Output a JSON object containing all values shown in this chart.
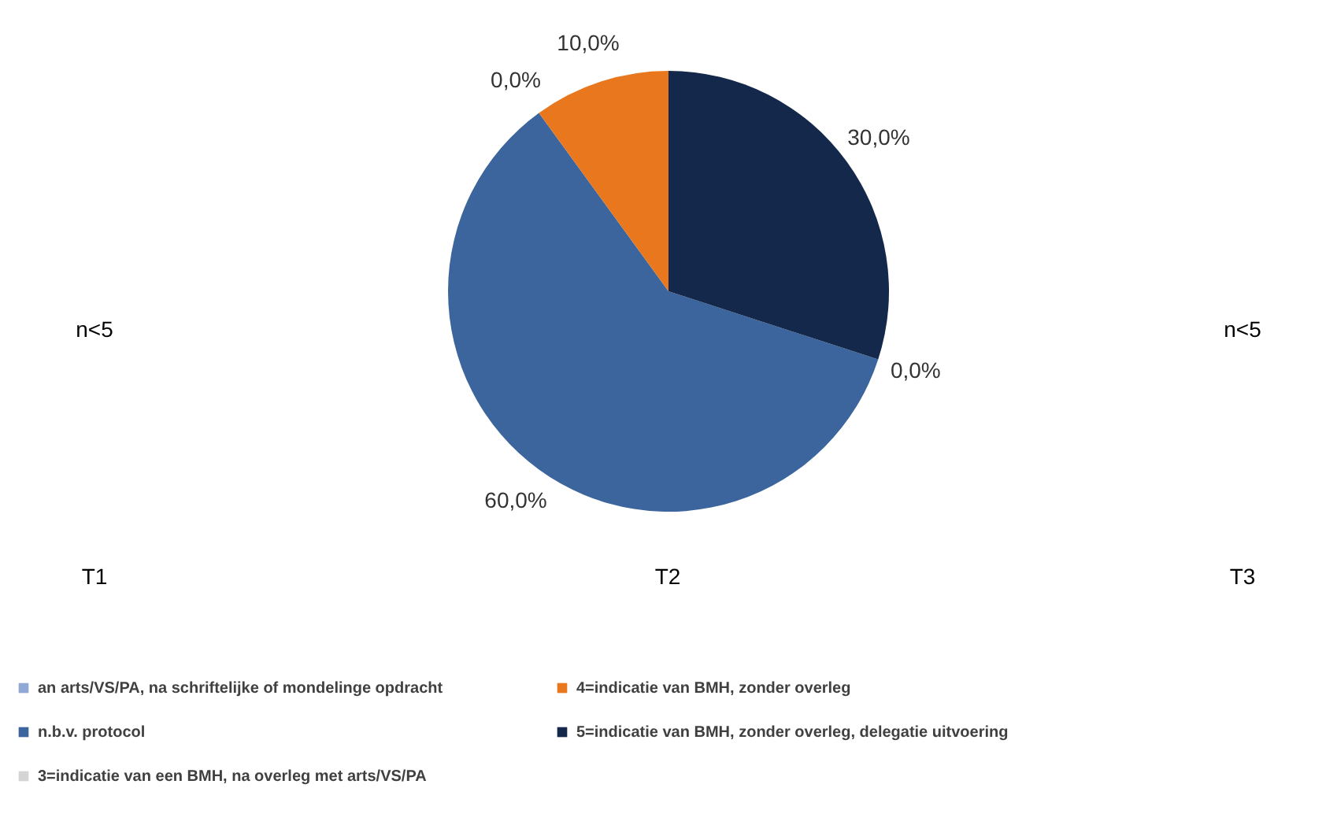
{
  "chart_data": [
    {
      "type": "other",
      "annotations": [
        "n<5"
      ],
      "xlabel": "T1"
    },
    {
      "type": "pie",
      "xlabel": "T2",
      "categories": [
        "an arts/VS/PA, na schriftelijke of mondelinge opdracht",
        "n.b.v. protocol",
        "3=indicatie van een BMH, na overleg met arts/VS/PA",
        "4=indicatie van BMH, zonder overleg",
        "5=indicatie van BMH, zonder overleg, delegatie uitvoering"
      ],
      "values": [
        0,
        60,
        0,
        10,
        30
      ],
      "colors": [
        "#8fa9d4",
        "#3b659c",
        "#d4d4d4",
        "#e8771e",
        "#13284a"
      ],
      "value_labels": [
        "0,0%",
        "60,0%",
        "0,0%",
        "10,0%",
        "30,0%"
      ],
      "legend": "bottom"
    },
    {
      "type": "other",
      "annotations": [
        "n<5"
      ],
      "xlabel": "T3"
    }
  ]
}
